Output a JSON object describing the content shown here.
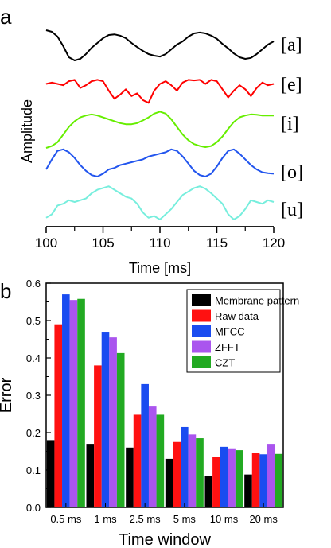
{
  "chart_data": [
    {
      "panel_label": "a",
      "type": "line",
      "xlabel": "Time [ms]",
      "ylabel": "Amplitude",
      "xlim": [
        100,
        120
      ],
      "xticks": [
        "100",
        "105",
        "110",
        "115",
        "120"
      ],
      "y_ticks_shown": false,
      "series": [
        {
          "name": "[a]",
          "color": "#000000",
          "x": [
            100,
            100.5,
            101,
            101.5,
            102,
            102.5,
            103,
            103.5,
            104,
            104.5,
            105,
            105.5,
            106,
            106.5,
            107,
            107.5,
            108,
            108.5,
            109,
            109.5,
            110,
            110.5,
            111,
            111.5,
            112,
            112.5,
            113,
            113.5,
            114,
            114.5,
            115,
            115.5,
            116,
            116.5,
            117,
            117.5,
            118,
            118.5,
            119,
            119.5,
            120
          ],
          "y": [
            0.95,
            0.9,
            0.75,
            0.45,
            0.1,
            0.0,
            0.05,
            0.2,
            0.4,
            0.55,
            0.7,
            0.8,
            0.82,
            0.78,
            0.7,
            0.55,
            0.42,
            0.3,
            0.2,
            0.15,
            0.12,
            0.2,
            0.35,
            0.5,
            0.6,
            0.75,
            0.85,
            0.88,
            0.85,
            0.78,
            0.68,
            0.52,
            0.38,
            0.22,
            0.1,
            0.05,
            0.08,
            0.2,
            0.35,
            0.5,
            0.6
          ]
        },
        {
          "name": "[e]",
          "color": "#ff0000",
          "x": [
            100,
            100.5,
            101,
            101.5,
            102,
            102.5,
            103,
            103.5,
            104,
            104.5,
            105,
            105.5,
            106,
            106.5,
            107,
            107.5,
            108,
            108.5,
            109,
            109.5,
            110,
            110.5,
            111,
            111.5,
            112,
            112.5,
            113,
            113.5,
            114,
            114.5,
            115,
            115.5,
            116,
            116.5,
            117,
            117.5,
            118,
            118.5,
            119,
            119.5,
            120
          ],
          "y": [
            0.75,
            0.8,
            0.75,
            0.7,
            0.85,
            0.9,
            0.6,
            0.7,
            0.85,
            0.9,
            0.85,
            0.5,
            0.2,
            0.35,
            0.55,
            0.3,
            0.4,
            0.15,
            0.05,
            0.5,
            0.75,
            0.85,
            0.7,
            0.5,
            0.8,
            0.9,
            0.88,
            0.9,
            0.75,
            0.9,
            0.85,
            0.55,
            0.25,
            0.5,
            0.7,
            0.55,
            0.3,
            0.6,
            0.8,
            0.7,
            0.75
          ]
        },
        {
          "name": "[i]",
          "color": "#66ee00",
          "x": [
            100,
            100.5,
            101,
            101.5,
            102,
            102.5,
            103,
            103.5,
            104,
            104.5,
            105,
            105.5,
            106,
            106.5,
            107,
            107.5,
            108,
            108.5,
            109,
            109.5,
            110,
            110.5,
            111,
            111.5,
            112,
            112.5,
            113,
            113.5,
            114,
            114.5,
            115,
            115.5,
            116,
            116.5,
            117,
            117.5,
            118,
            118.5,
            119,
            119.5,
            120
          ],
          "y": [
            0.0,
            0.05,
            0.15,
            0.35,
            0.55,
            0.7,
            0.8,
            0.85,
            0.88,
            0.85,
            0.8,
            0.75,
            0.7,
            0.65,
            0.62,
            0.62,
            0.65,
            0.72,
            0.8,
            0.9,
            0.95,
            0.9,
            0.75,
            0.55,
            0.35,
            0.2,
            0.1,
            0.05,
            0.02,
            0.05,
            0.15,
            0.3,
            0.5,
            0.68,
            0.8,
            0.85,
            0.88,
            0.87,
            0.85,
            0.85,
            0.85
          ]
        },
        {
          "name": "[o]",
          "color": "#2255ee",
          "x": [
            100,
            100.5,
            101,
            101.5,
            102,
            102.5,
            103,
            103.5,
            104,
            104.5,
            105,
            105.5,
            106,
            106.5,
            107,
            107.5,
            108,
            108.5,
            109,
            109.5,
            110,
            110.5,
            111,
            111.5,
            112,
            112.5,
            113,
            113.5,
            114,
            114.5,
            115,
            115.5,
            116,
            116.5,
            117,
            117.5,
            118,
            118.5,
            119,
            119.5,
            120
          ],
          "y": [
            0.25,
            0.6,
            0.9,
            0.95,
            0.85,
            0.65,
            0.4,
            0.2,
            0.05,
            0.0,
            0.1,
            0.25,
            0.3,
            0.4,
            0.45,
            0.5,
            0.55,
            0.6,
            0.7,
            0.75,
            0.8,
            0.85,
            0.95,
            0.9,
            0.7,
            0.45,
            0.2,
            0.05,
            0.0,
            0.1,
            0.35,
            0.65,
            0.9,
            0.95,
            0.8,
            0.6,
            0.4,
            0.25,
            0.15,
            0.12,
            0.1
          ]
        },
        {
          "name": "[u]",
          "color": "#77eedd",
          "x": [
            100,
            100.5,
            101,
            101.5,
            102,
            102.5,
            103,
            103.5,
            104,
            104.5,
            105,
            105.5,
            106,
            106.5,
            107,
            107.5,
            108,
            108.5,
            109,
            109.5,
            110,
            110.5,
            111,
            111.5,
            112,
            112.5,
            113,
            113.5,
            114,
            114.5,
            115,
            115.5,
            116,
            116.5,
            117,
            117.5,
            118,
            118.5,
            119,
            119.5,
            120
          ],
          "y": [
            0.05,
            0.15,
            0.4,
            0.45,
            0.55,
            0.5,
            0.55,
            0.6,
            0.75,
            0.85,
            0.9,
            0.95,
            0.85,
            0.75,
            0.65,
            0.6,
            0.45,
            0.2,
            0.05,
            0.1,
            0.0,
            0.15,
            0.3,
            0.5,
            0.7,
            0.8,
            0.9,
            0.95,
            0.88,
            0.75,
            0.6,
            0.45,
            0.15,
            0.0,
            0.1,
            0.3,
            0.55,
            0.5,
            0.45,
            0.55,
            0.5
          ]
        }
      ]
    },
    {
      "panel_label": "b",
      "type": "bar",
      "xlabel": "Time window",
      "ylabel": "Error",
      "ylim": [
        0,
        0.6
      ],
      "yticks": [
        "0.0",
        "0.1",
        "0.2",
        "0.3",
        "0.4",
        "0.5",
        "0.6"
      ],
      "categories": [
        "0.5 ms",
        "1 ms",
        "2.5 ms",
        "5 ms",
        "10 ms",
        "20 ms"
      ],
      "legend_placement": "top-right",
      "series": [
        {
          "name": "Membrane pattern",
          "color": "#000000",
          "values": [
            0.18,
            0.17,
            0.16,
            0.13,
            0.085,
            0.088
          ]
        },
        {
          "name": "Raw data",
          "color": "#ff1111",
          "values": [
            0.49,
            0.38,
            0.248,
            0.175,
            0.135,
            0.145
          ]
        },
        {
          "name": "MFCC",
          "color": "#1a4cf0",
          "values": [
            0.57,
            0.468,
            0.33,
            0.215,
            0.162,
            0.142
          ]
        },
        {
          "name": "ZFFT",
          "color": "#aa55ee",
          "values": [
            0.555,
            0.455,
            0.27,
            0.195,
            0.158,
            0.17
          ]
        },
        {
          "name": "CZT",
          "color": "#22aa22",
          "values": [
            0.558,
            0.413,
            0.248,
            0.185,
            0.153,
            0.143
          ]
        }
      ]
    }
  ]
}
